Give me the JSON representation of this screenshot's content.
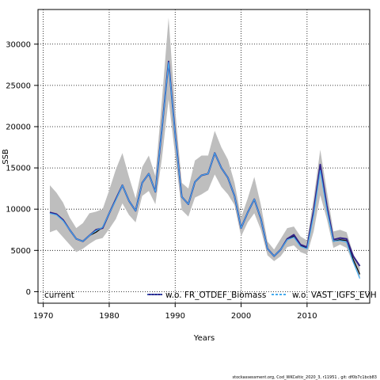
{
  "chart_data": {
    "type": "line",
    "xlabel": "Years",
    "ylabel": "SSB",
    "xlim": [
      1969.2,
      2019.5
    ],
    "ylim": [
      -1400,
      34200
    ],
    "xticks": [
      1970,
      1980,
      1990,
      2000,
      2010
    ],
    "yticks": [
      0,
      5000,
      10000,
      15000,
      20000,
      25000,
      30000
    ],
    "grid": "dotted",
    "legend_placement": "bottom",
    "x": [
      1971,
      1972,
      1973,
      1974,
      1975,
      1976,
      1977,
      1978,
      1979,
      1980,
      1981,
      1982,
      1983,
      1984,
      1985,
      1986,
      1987,
      1988,
      1989,
      1990,
      1991,
      1992,
      1993,
      1994,
      1995,
      1996,
      1997,
      1998,
      1999,
      2000,
      2001,
      2002,
      2003,
      2004,
      2005,
      2006,
      2007,
      2008,
      2009,
      2010,
      2011,
      2012,
      2013,
      2014,
      2015,
      2016,
      2017,
      2018
    ],
    "confidence_band": {
      "color": "#bebebe",
      "upper": [
        12900,
        12000,
        10800,
        9000,
        7700,
        8300,
        9500,
        9700,
        10000,
        12300,
        14800,
        16800,
        13900,
        11300,
        15100,
        16500,
        14000,
        23300,
        33200,
        22100,
        13200,
        12500,
        15900,
        16500,
        16500,
        19500,
        17500,
        16000,
        13200,
        9000,
        11300,
        13900,
        10500,
        6100,
        5100,
        6400,
        7700,
        7900,
        6700,
        6200,
        11300,
        17200,
        12200,
        7300,
        7500,
        7200,
        4600,
        2900
      ],
      "lower": [
        7200,
        7500,
        6600,
        5700,
        4800,
        5200,
        5800,
        6300,
        6500,
        7600,
        8800,
        10700,
        9300,
        8400,
        11600,
        12200,
        10600,
        16200,
        23300,
        16500,
        9900,
        9100,
        11400,
        11800,
        12300,
        14200,
        12700,
        11800,
        10500,
        6700,
        8400,
        9500,
        7500,
        4400,
        3700,
        4300,
        5400,
        5600,
        4800,
        4500,
        7300,
        11700,
        8800,
        5300,
        5700,
        5300,
        3400,
        1600
      ]
    },
    "series": [
      {
        "name": "current",
        "color": "#000000",
        "values": [
          9600,
          9400,
          8700,
          7500,
          6400,
          6100,
          6800,
          7200,
          7800,
          9500,
          11200,
          12900,
          11000,
          9800,
          13200,
          14300,
          12100,
          19800,
          27900,
          19100,
          11500,
          10600,
          13300,
          14100,
          14300,
          16800,
          15000,
          13800,
          11600,
          7700,
          9600,
          11200,
          8800,
          5200,
          4300,
          5100,
          6300,
          6700,
          5600,
          5300,
          9600,
          15100,
          10100,
          6100,
          6300,
          6200,
          3900,
          2100
        ]
      },
      {
        "name": "w.o. FR_OTDEF_Biomass",
        "color": "#332288",
        "values": [
          9600,
          9400,
          8700,
          7500,
          6400,
          6100,
          6800,
          7500,
          7700,
          9500,
          11200,
          12900,
          11000,
          9800,
          13200,
          14300,
          12100,
          19800,
          27900,
          19100,
          11500,
          10600,
          13300,
          14100,
          14300,
          16800,
          15000,
          13800,
          11600,
          7700,
          9600,
          11200,
          8800,
          5200,
          4300,
          5100,
          6400,
          6900,
          5700,
          5400,
          9800,
          15400,
          10400,
          6300,
          6500,
          6400,
          4300,
          3100
        ]
      },
      {
        "name": "w.o. VAST_IGFS_EVHOE",
        "color": "#44aaee",
        "values": [
          9500,
          9300,
          8600,
          7500,
          6400,
          6100,
          6800,
          7400,
          7800,
          9500,
          11100,
          12900,
          11000,
          9800,
          13200,
          14300,
          12100,
          19800,
          27800,
          19000,
          11500,
          10600,
          13300,
          14100,
          14300,
          16800,
          15000,
          13800,
          11600,
          7700,
          9600,
          11200,
          8800,
          5200,
          4300,
          5100,
          6300,
          6600,
          5500,
          5200,
          9300,
          14700,
          9900,
          6100,
          6200,
          6000,
          3600,
          1600
        ]
      }
    ]
  },
  "legend": {
    "current": "current",
    "fr_otdef": "w.o. FR_OTDEF_Biomass",
    "vast": "w.o. VAST_IGFS_EVH"
  },
  "footer": "stockassessment.org, Cod_WKCeltic_2020_3, r11951 , git: df0b7c1bcb83"
}
